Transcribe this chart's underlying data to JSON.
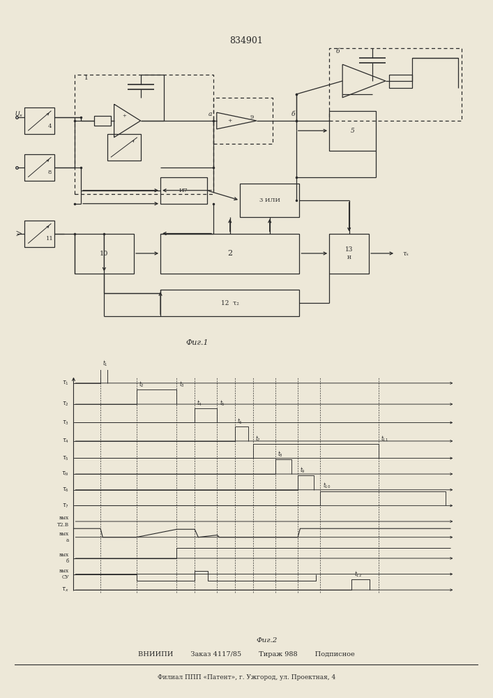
{
  "title": "834901",
  "fig1_label": "Фиг.1",
  "fig2_label": "Фиг.2",
  "footer1": "ВНИИПИ        Заказ 4117/85        Тираж 988        Подписное",
  "footer2": "Филиал ППП «Патент», г. Ужгород, ул. Проектная, 4",
  "bg": "#ede8d8",
  "lc": "#2a2a2a",
  "lw": 0.9
}
